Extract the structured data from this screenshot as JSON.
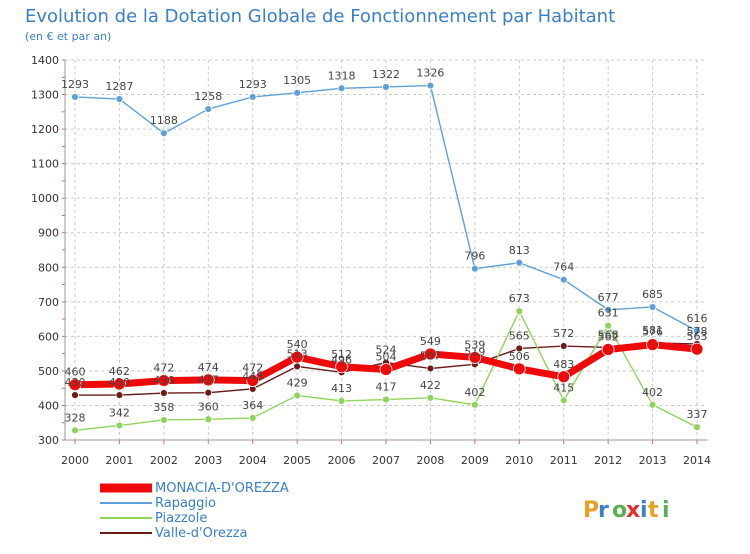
{
  "chart_data": {
    "type": "line",
    "title": "Evolution de la Dotation Globale de Fonctionnement par Habitant",
    "subtitle": "(en € et par an)",
    "brand": "Proxiti",
    "x": [
      "2000",
      "2001",
      "2002",
      "2003",
      "2004",
      "2005",
      "2006",
      "2007",
      "2008",
      "2009",
      "2010",
      "2011",
      "2012",
      "2013",
      "2014"
    ],
    "ylim": [
      300,
      1400
    ],
    "yticks": [
      300,
      400,
      500,
      600,
      700,
      800,
      900,
      1000,
      1100,
      1200,
      1300,
      1400
    ],
    "grid": true,
    "legend_position": "bottom-left",
    "series": [
      {
        "name": "Valle-d'Orezza",
        "color": "#6b1a1a",
        "line_width": 1.4,
        "marker_r": 3.5,
        "values": [
          430,
          430,
          436,
          437,
          448,
          513,
          496,
          524,
          507,
          519,
          565,
          572,
          568,
          581,
          578
        ],
        "labels": [
          "430",
          "430",
          "436",
          "437",
          "448",
          "513",
          "496",
          "524",
          "507",
          "519",
          "565",
          "572",
          "568",
          "581",
          "578"
        ]
      },
      {
        "name": "Piazzole",
        "color": "#8fd45a",
        "line_width": 1.4,
        "marker_r": 3.5,
        "values": [
          328,
          342,
          358,
          360,
          364,
          429,
          413,
          417,
          422,
          402,
          673,
          415,
          631,
          402,
          337
        ],
        "labels": [
          "328",
          "342",
          "358",
          "360",
          "364",
          "429",
          "413",
          "417",
          "422",
          "402",
          "673",
          "415",
          "631",
          "402",
          "337"
        ]
      },
      {
        "name": "Rapaggio",
        "color": "#5fa0d8",
        "line_width": 1.4,
        "marker_r": 3.5,
        "values": [
          1293,
          1287,
          1188,
          1258,
          1293,
          1305,
          1318,
          1322,
          1326,
          796,
          813,
          764,
          677,
          685,
          616
        ],
        "labels": [
          "1293",
          "1287",
          "1188",
          "1258",
          "1293",
          "1305",
          "1318",
          "1322",
          "1326",
          "796",
          "813",
          "764",
          "677",
          "685",
          "616"
        ]
      },
      {
        "name": "MONACIA-D'OREZZA",
        "color": "#ee0a0a",
        "line_width": 7,
        "marker_r": 6,
        "values": [
          460,
          462,
          472,
          474,
          472,
          540,
          512,
          504,
          549,
          539,
          506,
          483,
          562,
          576,
          563
        ],
        "labels": [
          "460",
          "462",
          "472",
          "474",
          "472",
          "540",
          "512",
          "504",
          "549",
          "539",
          "506",
          "483",
          "562",
          "576",
          "563"
        ]
      }
    ]
  }
}
